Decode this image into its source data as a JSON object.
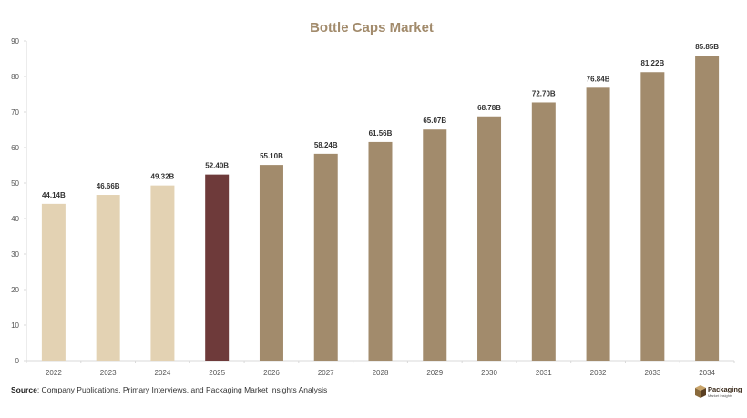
{
  "chart_data": {
    "type": "bar",
    "title": "Bottle Caps Market",
    "categories": [
      "2022",
      "2023",
      "2024",
      "2025",
      "2026",
      "2027",
      "2028",
      "2029",
      "2030",
      "2031",
      "2032",
      "2033",
      "2034"
    ],
    "values": [
      44.14,
      46.66,
      49.32,
      52.4,
      55.1,
      58.24,
      61.56,
      65.07,
      68.78,
      72.7,
      76.84,
      81.22,
      85.85
    ],
    "data_labels": [
      "44.14B",
      "46.66B",
      "49.32B",
      "52.40B",
      "55.10B",
      "58.24B",
      "61.56B",
      "65.07B",
      "68.78B",
      "72.70B",
      "76.84B",
      "81.22B",
      "85.85B"
    ],
    "ylim": [
      0,
      90
    ],
    "yticks": [
      0,
      10,
      20,
      30,
      40,
      50,
      60,
      70,
      80,
      90
    ],
    "xlabel": "",
    "ylabel": "",
    "grid": false,
    "colors": {
      "historical": "#e3d2b3",
      "current": "#6e3a3a",
      "forecast": "#a28b6c",
      "title": "#a28b6c"
    },
    "bar_color_groups": [
      "historical",
      "historical",
      "historical",
      "current",
      "forecast",
      "forecast",
      "forecast",
      "forecast",
      "forecast",
      "forecast",
      "forecast",
      "forecast",
      "forecast"
    ]
  },
  "footer": {
    "source_label": "Source",
    "source_text": ": Company Publications, Primary Interviews, and Packaging Market Insights Analysis"
  },
  "brand": {
    "name": "Packaging",
    "tagline": "Market Insights",
    "icon": "package-box-icon"
  }
}
